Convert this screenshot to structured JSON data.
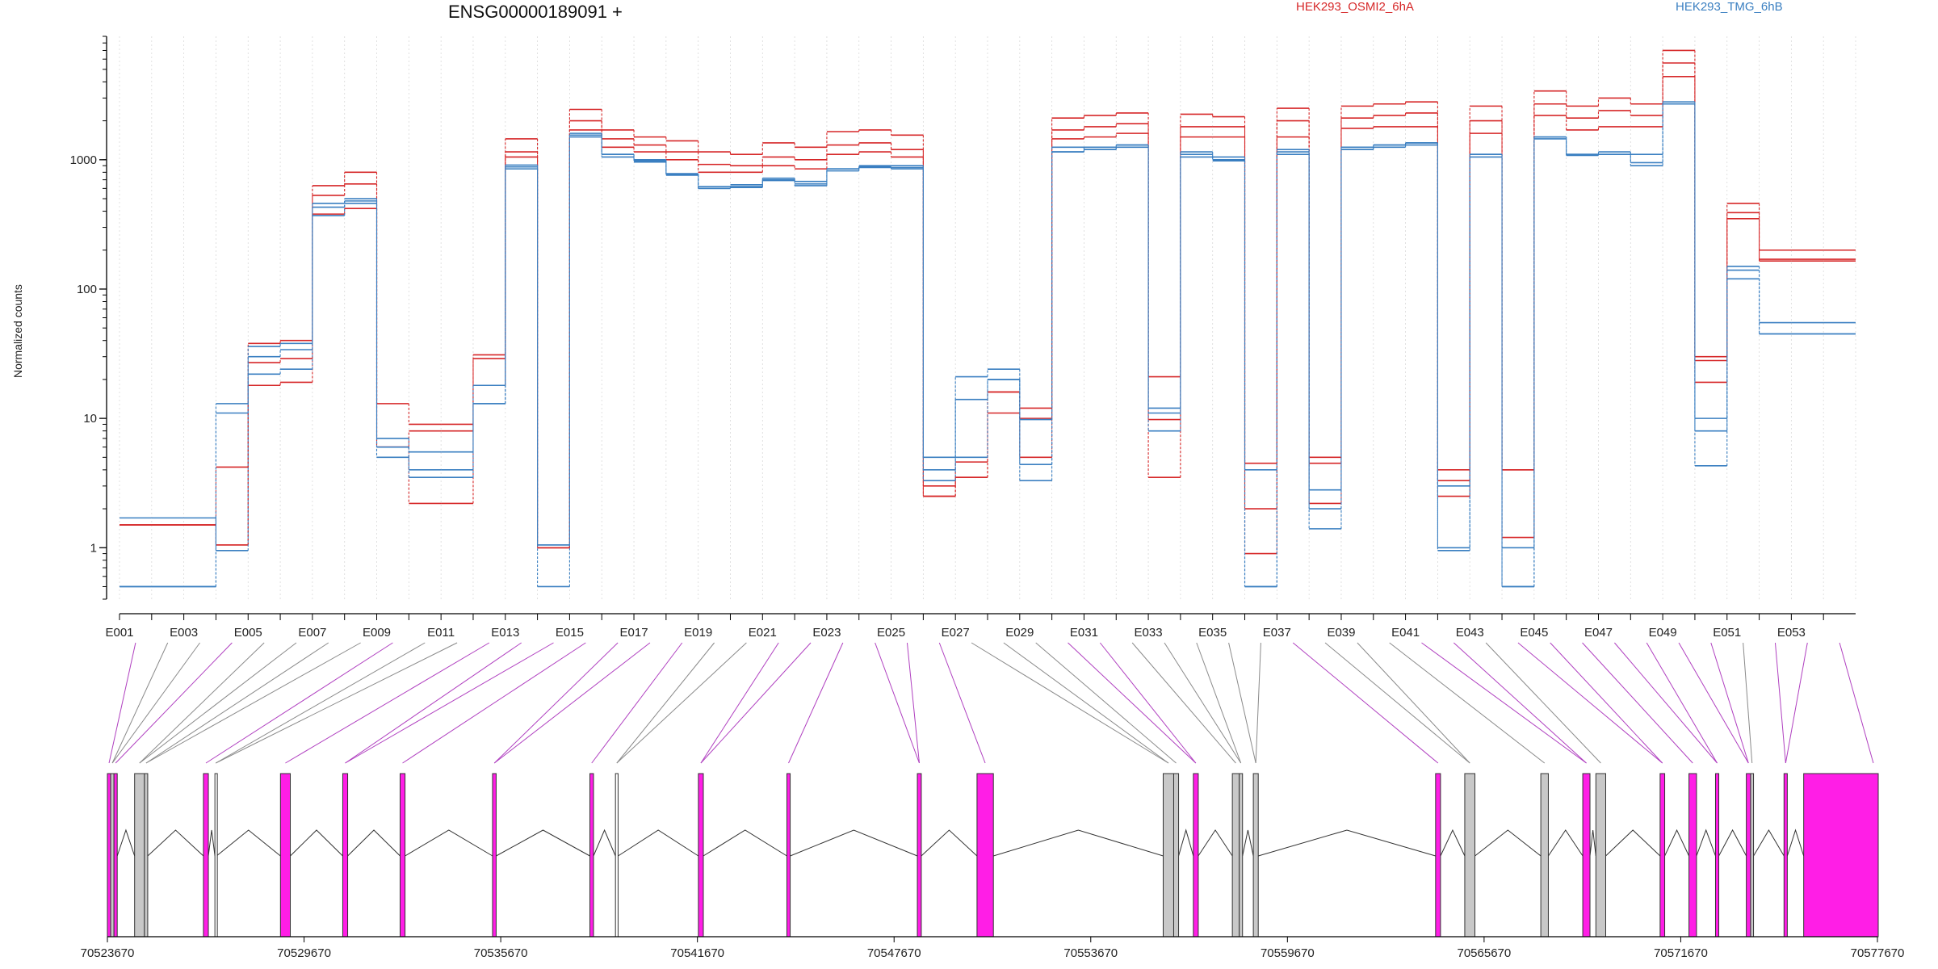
{
  "chart_data": {
    "type": "line",
    "title": "ENSG00000189091 +",
    "ylabel": "Normalized counts",
    "yscale": "log",
    "ylim": [
      0.4,
      9000
    ],
    "y_ticks": [
      1,
      10,
      100,
      1000
    ],
    "y_tick_labels": [
      "1",
      "10",
      "100",
      "1000"
    ],
    "bins": [
      "E001",
      "E002",
      "E003",
      "E004",
      "E005",
      "E006",
      "E007",
      "E008",
      "E009",
      "E010",
      "E011",
      "E012",
      "E013",
      "E014",
      "E015",
      "E016",
      "E017",
      "E018",
      "E019",
      "E020",
      "E021",
      "E022",
      "E023",
      "E024",
      "E025",
      "E026",
      "E027",
      "E028",
      "E029",
      "E030",
      "E031",
      "E032",
      "E033",
      "E034",
      "E035",
      "E036",
      "E037",
      "E038",
      "E039",
      "E040",
      "E041",
      "E042",
      "E043",
      "E044",
      "E045",
      "E046",
      "E047",
      "E048",
      "E049",
      "E050",
      "E051",
      "E052",
      "E053",
      "E054"
    ],
    "bin_tick_labels": [
      "E001",
      "E003",
      "E005",
      "E007",
      "E009",
      "E011",
      "E013",
      "E015",
      "E017",
      "E019",
      "E021",
      "E023",
      "E025",
      "E027",
      "E029",
      "E031",
      "E033",
      "E035",
      "E037",
      "E039",
      "E041",
      "E043",
      "E045",
      "E047",
      "E049",
      "E051",
      "E053"
    ],
    "legend": [
      {
        "label": "HEK293_OSMI2_6hA",
        "color": "#d62728"
      },
      {
        "label": "HEK293_TMG_6hB",
        "color": "#3a7fc1"
      }
    ],
    "series": [
      {
        "group": "HEK293_OSMI2_6hA",
        "color": "#d62728",
        "values": [
          1.5,
          1.5,
          1.5,
          4.2,
          18,
          19,
          380,
          420,
          13,
          9,
          9,
          31,
          1450,
          1,
          2450,
          1700,
          1500,
          1400,
          1150,
          1100,
          1350,
          1250,
          1650,
          1700,
          1550,
          2.5,
          3.5,
          16,
          12,
          2100,
          2200,
          2300,
          21,
          2250,
          2150,
          0.9,
          2500,
          5,
          2600,
          2700,
          2800,
          4,
          2600,
          4,
          3400,
          2600,
          3000,
          2700,
          7000,
          30,
          460,
          200,
          200,
          200
        ]
      },
      {
        "group": "HEK293_OSMI2_6hA",
        "color": "#d62728",
        "values": [
          1.5,
          1.5,
          1.5,
          1.05,
          27,
          29,
          530,
          650,
          6,
          8,
          8,
          29,
          1150,
          1,
          2000,
          1450,
          1300,
          1150,
          920,
          900,
          1050,
          1000,
          1300,
          1350,
          1200,
          3,
          4.6,
          11,
          5,
          1700,
          1800,
          1900,
          9.8,
          1800,
          1800,
          2,
          2000,
          2.2,
          2100,
          2200,
          2300,
          3.3,
          2000,
          1.2,
          2700,
          2100,
          2400,
          2200,
          5600,
          19,
          390,
          170,
          170,
          170
        ]
      },
      {
        "group": "HEK293_OSMI2_6hA",
        "color": "#d62728",
        "values": [
          1.5,
          1.5,
          1.5,
          1.05,
          38,
          40,
          630,
          800,
          6,
          2.2,
          2.2,
          18,
          1050,
          1,
          1700,
          1250,
          1150,
          1000,
          800,
          800,
          900,
          850,
          1100,
          1150,
          1050,
          2.5,
          3.5,
          16,
          10,
          1450,
          1500,
          1600,
          3.5,
          1500,
          1500,
          4.5,
          1500,
          4.5,
          1750,
          1800,
          1800,
          2.5,
          1600,
          4,
          2200,
          1700,
          1800,
          1800,
          4400,
          28,
          350,
          165,
          165,
          165
        ]
      },
      {
        "group": "HEK293_TMG_6hB",
        "color": "#3a7fc1",
        "values": [
          0.5,
          0.5,
          0.5,
          11,
          22,
          24,
          370,
          460,
          6,
          5.5,
          5.5,
          13,
          850,
          0.5,
          1550,
          1050,
          980,
          780,
          620,
          620,
          700,
          650,
          850,
          880,
          870,
          5,
          5,
          20,
          4.4,
          1250,
          1200,
          1250,
          12,
          1100,
          1050,
          0.5,
          1200,
          2.8,
          1200,
          1250,
          1300,
          1,
          1100,
          0.5,
          1450,
          1100,
          1100,
          1100,
          2700,
          8,
          150,
          55,
          55,
          55
        ]
      },
      {
        "group": "HEK293_TMG_6hB",
        "color": "#3a7fc1",
        "values": [
          1.7,
          1.7,
          1.7,
          0.95,
          30,
          34,
          430,
          480,
          7,
          3.5,
          3.5,
          18,
          910,
          1.05,
          1500,
          1100,
          960,
          770,
          600,
          610,
          690,
          630,
          820,
          870,
          850,
          4,
          14,
          20,
          9.8,
          1150,
          1200,
          1300,
          11,
          1150,
          1000,
          4,
          1150,
          2,
          1200,
          1300,
          1350,
          3,
          1100,
          1,
          1500,
          1080,
          1100,
          950,
          2700,
          10,
          140,
          45,
          45,
          45
        ]
      },
      {
        "group": "HEK293_TMG_6hB",
        "color": "#3a7fc1",
        "values": [
          0.5,
          0.5,
          0.5,
          13,
          36,
          38,
          460,
          500,
          5,
          4,
          4,
          13,
          880,
          1.05,
          1600,
          1100,
          1000,
          760,
          600,
          640,
          720,
          680,
          850,
          900,
          900,
          3.3,
          21,
          24,
          3.3,
          1150,
          1250,
          1300,
          8,
          1050,
          980,
          0.5,
          1100,
          1.4,
          1250,
          1300,
          1350,
          0.95,
          1050,
          0.5,
          1500,
          1100,
          1150,
          900,
          2800,
          4.3,
          120,
          45,
          45,
          45
        ]
      }
    ],
    "genome_axis": {
      "tick_labels": [
        "70523670",
        "70529670",
        "70535670",
        "70541670",
        "70547670",
        "70553670",
        "70559670",
        "70565670",
        "70571670",
        "70577670"
      ],
      "ticks": [
        70523670,
        70529670,
        70535670,
        70541670,
        70547670,
        70553670,
        70559670,
        70565670,
        70571670,
        70577670
      ],
      "range": [
        70523670,
        70577670
      ]
    },
    "exons": [
      {
        "s": 70523670,
        "e": 70523770,
        "c": "m"
      },
      {
        "s": 70523770,
        "e": 70523870,
        "c": "g"
      },
      {
        "s": 70523870,
        "e": 70523970,
        "c": "m"
      },
      {
        "s": 70524500,
        "e": 70524800,
        "c": "g"
      },
      {
        "s": 70524800,
        "e": 70524900,
        "c": "g"
      },
      {
        "s": 70526600,
        "e": 70526750,
        "c": "m"
      },
      {
        "s": 70526950,
        "e": 70527000,
        "c": "w"
      },
      {
        "s": 70528950,
        "e": 70529250,
        "c": "m"
      },
      {
        "s": 70530850,
        "e": 70531000,
        "c": "m"
      },
      {
        "s": 70532600,
        "e": 70532750,
        "c": "m"
      },
      {
        "s": 70535420,
        "e": 70535530,
        "c": "m"
      },
      {
        "s": 70538390,
        "e": 70538500,
        "c": "m"
      },
      {
        "s": 70539170,
        "e": 70539250,
        "c": "w"
      },
      {
        "s": 70541700,
        "e": 70541850,
        "c": "m"
      },
      {
        "s": 70544400,
        "e": 70544500,
        "c": "m"
      },
      {
        "s": 70548380,
        "e": 70548500,
        "c": "m"
      },
      {
        "s": 70550200,
        "e": 70550700,
        "c": "m"
      },
      {
        "s": 70555880,
        "e": 70556200,
        "c": "g"
      },
      {
        "s": 70556200,
        "e": 70556350,
        "c": "g"
      },
      {
        "s": 70556800,
        "e": 70556950,
        "c": "m"
      },
      {
        "s": 70557990,
        "e": 70558200,
        "c": "g"
      },
      {
        "s": 70558200,
        "e": 70558300,
        "c": "g"
      },
      {
        "s": 70558630,
        "e": 70558780,
        "c": "g"
      },
      {
        "s": 70564190,
        "e": 70564340,
        "c": "m"
      },
      {
        "s": 70565080,
        "e": 70565390,
        "c": "g"
      },
      {
        "s": 70567400,
        "e": 70567630,
        "c": "g"
      },
      {
        "s": 70568680,
        "e": 70568900,
        "c": "m"
      },
      {
        "s": 70569080,
        "e": 70569380,
        "c": "g"
      },
      {
        "s": 70571040,
        "e": 70571180,
        "c": "m"
      },
      {
        "s": 70571920,
        "e": 70572150,
        "c": "m"
      },
      {
        "s": 70572730,
        "e": 70572830,
        "c": "m"
      },
      {
        "s": 70573670,
        "e": 70573800,
        "c": "m"
      },
      {
        "s": 70573800,
        "e": 70573890,
        "c": "g"
      },
      {
        "s": 70574820,
        "e": 70574920,
        "c": "m"
      },
      {
        "s": 70575420,
        "e": 70580000,
        "c": "m"
      }
    ]
  }
}
